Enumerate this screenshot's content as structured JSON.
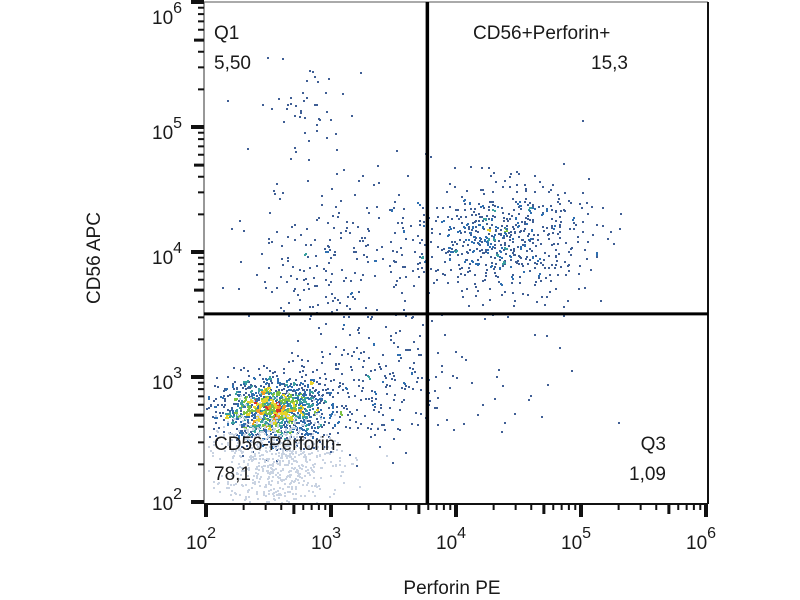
{
  "chart_data": {
    "type": "scatter",
    "subtype": "flow-cytometry-density-dot-plot",
    "xlabel": "Perforin PE",
    "ylabel": "CD56 APC",
    "xscale": "log",
    "yscale": "log",
    "xlim": [
      100,
      1000000
    ],
    "ylim": [
      100,
      1000000
    ],
    "x_ticks": [
      {
        "base": "10",
        "exp": "2",
        "value": 100
      },
      {
        "base": "10",
        "exp": "3",
        "value": 1000
      },
      {
        "base": "10",
        "exp": "4",
        "value": 10000
      },
      {
        "base": "10",
        "exp": "5",
        "value": 100000
      },
      {
        "base": "10",
        "exp": "6",
        "value": 1000000
      }
    ],
    "y_ticks": [
      {
        "base": "10",
        "exp": "2",
        "value": 100
      },
      {
        "base": "10",
        "exp": "3",
        "value": 1000
      },
      {
        "base": "10",
        "exp": "4",
        "value": 10000
      },
      {
        "base": "10",
        "exp": "5",
        "value": 100000
      },
      {
        "base": "10",
        "exp": "6",
        "value": 1000000
      }
    ],
    "quadrant_gate": {
      "x_threshold": 5900,
      "y_threshold": 3200
    },
    "quadrants": [
      {
        "id": "Q1",
        "name": "Q1",
        "value": "5,50",
        "position": "top-left"
      },
      {
        "id": "Q2",
        "name": "CD56+Perforin+",
        "value": "15,3",
        "position": "top-right"
      },
      {
        "id": "Q3",
        "name": "Q3",
        "value": "1,09",
        "position": "bottom-right"
      },
      {
        "id": "Q4",
        "name": "CD56-Perforin-",
        "value": "78,1",
        "position": "bottom-left"
      }
    ],
    "populations": [
      {
        "name": "CD56-Perforin- main cluster",
        "center_x": 350,
        "center_y": 550,
        "spread_log_x": 0.22,
        "spread_log_y": 0.12,
        "relative_density": "very high",
        "n": 1400
      },
      {
        "name": "CD56-Perforin- low-signal tail",
        "center_x": 350,
        "center_y": 230,
        "spread_log_x": 0.25,
        "spread_log_y": 0.2,
        "relative_density": "faint",
        "n": 700
      },
      {
        "name": "CD56+Perforin+ cluster",
        "center_x": 22000,
        "center_y": 13000,
        "spread_log_x": 0.35,
        "spread_log_y": 0.22,
        "relative_density": "medium",
        "n": 650
      },
      {
        "name": "Q1 diffuse scatter",
        "center_x": 1200,
        "center_y": 9000,
        "spread_log_x": 0.35,
        "spread_log_y": 0.35,
        "relative_density": "low",
        "n": 230
      },
      {
        "name": "Q1 high CD56 strand",
        "center_x": 650,
        "center_y": 150000,
        "spread_log_x": 0.22,
        "spread_log_y": 0.2,
        "relative_density": "sparse",
        "n": 45
      },
      {
        "name": "bridge scatter",
        "center_x": 2000,
        "center_y": 800,
        "spread_log_x": 0.35,
        "spread_log_y": 0.25,
        "relative_density": "low",
        "n": 220
      },
      {
        "name": "Q3 sparse",
        "center_x": 15000,
        "center_y": 900,
        "spread_log_x": 0.4,
        "spread_log_y": 0.3,
        "relative_density": "sparse",
        "n": 30
      }
    ],
    "density_colormap": [
      "#c9d3e2",
      "#3f5f95",
      "#2f6fb0",
      "#3aa0a0",
      "#7cc242",
      "#e8d32a",
      "#f19a25",
      "#d9302a"
    ],
    "grid": false,
    "legend": "none"
  }
}
